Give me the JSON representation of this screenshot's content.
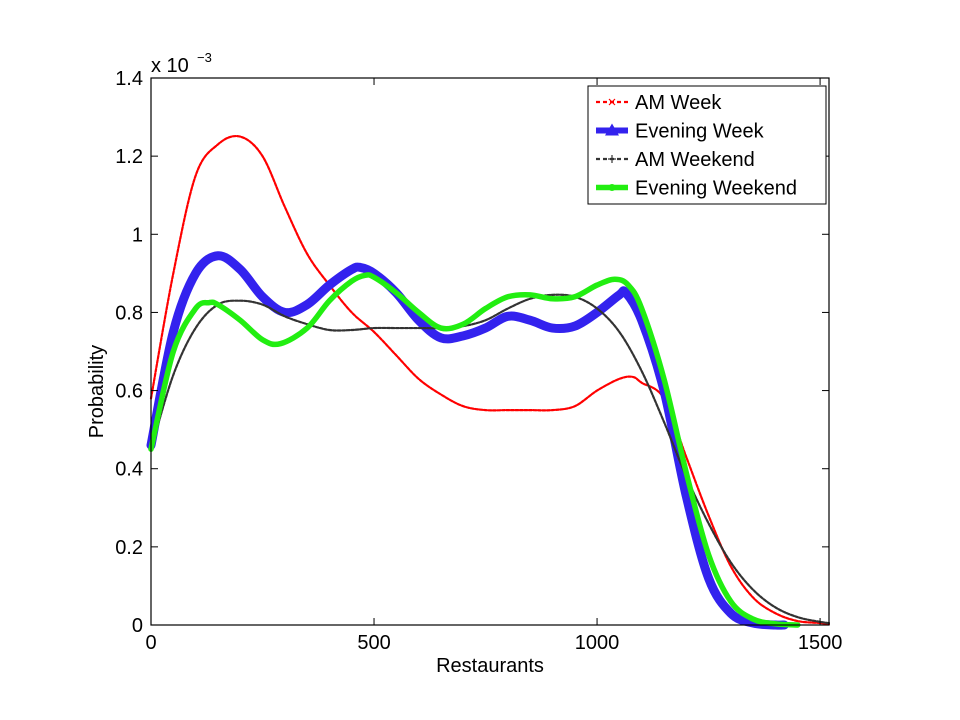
{
  "chart_data": {
    "type": "line",
    "xlabel": "Restaurants",
    "ylabel": "Probability",
    "y_exponent_label": "x 10",
    "y_exponent_power": "−3",
    "xlim": [
      0,
      1520
    ],
    "ylim": [
      0,
      1.4
    ],
    "x_ticks": [
      0,
      500,
      1000,
      1500
    ],
    "x_tick_labels": [
      "0",
      "500",
      "1000",
      "1500"
    ],
    "y_ticks": [
      0,
      0.2,
      0.4,
      0.6,
      0.8,
      1.0,
      1.2,
      1.4
    ],
    "y_tick_labels": [
      "0",
      "0.2",
      "0.4",
      "0.6",
      "0.8",
      "1",
      "1.2",
      "1.4"
    ],
    "legend_position": "top-right",
    "grid": false,
    "series": [
      {
        "name": "AM Week",
        "color": "#ff0000",
        "style": "thin-x-markers",
        "x": [
          0,
          50,
          100,
          150,
          200,
          250,
          300,
          350,
          400,
          450,
          500,
          550,
          600,
          650,
          700,
          750,
          800,
          850,
          900,
          950,
          1000,
          1050,
          1080,
          1100,
          1150,
          1200,
          1250,
          1300,
          1350,
          1400,
          1450,
          1500,
          1520
        ],
        "y": [
          0.58,
          0.9,
          1.15,
          1.23,
          1.25,
          1.2,
          1.07,
          0.95,
          0.87,
          0.8,
          0.75,
          0.69,
          0.63,
          0.59,
          0.56,
          0.55,
          0.55,
          0.55,
          0.55,
          0.56,
          0.6,
          0.63,
          0.635,
          0.62,
          0.58,
          0.43,
          0.28,
          0.15,
          0.07,
          0.03,
          0.01,
          0.005,
          0.002
        ]
      },
      {
        "name": "Evening Week",
        "color": "#3322ee",
        "style": "thick-triangle-markers",
        "x": [
          0,
          50,
          100,
          150,
          200,
          250,
          300,
          350,
          400,
          450,
          470,
          500,
          550,
          600,
          650,
          700,
          750,
          800,
          850,
          900,
          950,
          1000,
          1050,
          1065,
          1100,
          1150,
          1200,
          1250,
          1300,
          1350,
          1400,
          1420
        ],
        "y": [
          0.46,
          0.75,
          0.9,
          0.945,
          0.91,
          0.84,
          0.8,
          0.82,
          0.87,
          0.91,
          0.915,
          0.9,
          0.85,
          0.78,
          0.735,
          0.74,
          0.76,
          0.79,
          0.78,
          0.76,
          0.765,
          0.8,
          0.845,
          0.85,
          0.78,
          0.6,
          0.33,
          0.12,
          0.03,
          0.005,
          0.0,
          0.0
        ]
      },
      {
        "name": "AM Weekend",
        "color": "#333333",
        "style": "thin-plus-markers",
        "x": [
          0,
          50,
          100,
          150,
          200,
          250,
          300,
          350,
          400,
          450,
          500,
          550,
          600,
          650,
          700,
          750,
          800,
          850,
          900,
          950,
          1000,
          1050,
          1100,
          1150,
          1200,
          1250,
          1300,
          1350,
          1400,
          1450,
          1500,
          1520
        ],
        "y": [
          0.45,
          0.64,
          0.76,
          0.82,
          0.83,
          0.82,
          0.79,
          0.77,
          0.755,
          0.755,
          0.76,
          0.76,
          0.76,
          0.76,
          0.765,
          0.78,
          0.81,
          0.835,
          0.845,
          0.84,
          0.81,
          0.75,
          0.65,
          0.52,
          0.38,
          0.26,
          0.16,
          0.09,
          0.045,
          0.02,
          0.008,
          0.005
        ]
      },
      {
        "name": "Evening Weekend",
        "color": "#22ee11",
        "style": "thick-dot-markers",
        "x": [
          0,
          50,
          100,
          130,
          150,
          200,
          250,
          290,
          350,
          400,
          450,
          480,
          500,
          550,
          600,
          650,
          700,
          750,
          800,
          850,
          900,
          950,
          1000,
          1040,
          1070,
          1100,
          1150,
          1200,
          1250,
          1300,
          1350,
          1400,
          1450
        ],
        "y": [
          0.45,
          0.7,
          0.81,
          0.825,
          0.82,
          0.78,
          0.73,
          0.72,
          0.76,
          0.83,
          0.88,
          0.895,
          0.89,
          0.85,
          0.8,
          0.76,
          0.77,
          0.81,
          0.84,
          0.845,
          0.835,
          0.84,
          0.87,
          0.885,
          0.87,
          0.81,
          0.63,
          0.39,
          0.18,
          0.06,
          0.015,
          0.003,
          0.0
        ]
      }
    ]
  }
}
